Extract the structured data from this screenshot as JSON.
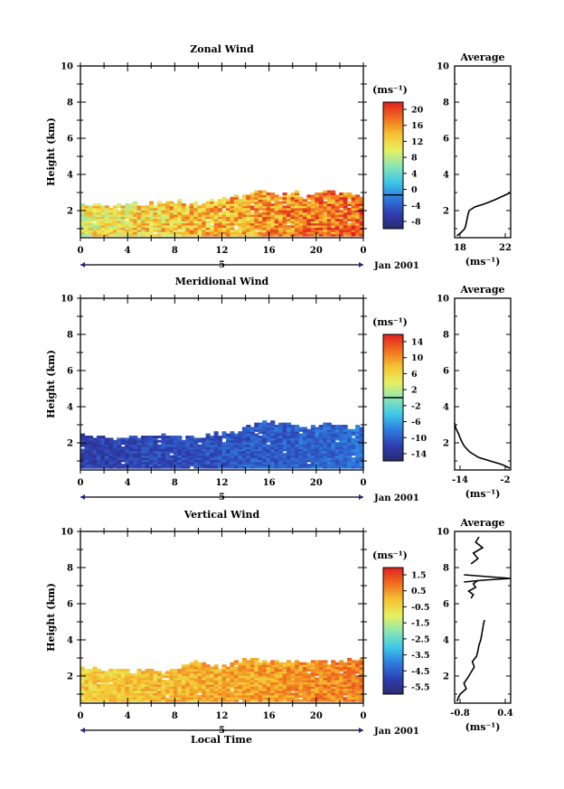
{
  "figure": {
    "bottom_xlabel": "Local Time",
    "date_label": "Jan 2001",
    "day_label": "5"
  },
  "chart_data": [
    {
      "type": "heatmap",
      "title": "Zonal Wind",
      "ylabel": "Height (km)",
      "xlim": [
        0,
        24
      ],
      "ylim": [
        0.5,
        10
      ],
      "x_ticks": [
        "0",
        "4",
        "8",
        "12",
        "16",
        "20",
        "0"
      ],
      "y_ticks": [
        "2",
        "4",
        "6",
        "8",
        "10"
      ],
      "colorbar": {
        "label": "(ms⁻¹)",
        "range": [
          -8,
          22
        ],
        "ticks": [
          "20",
          "16",
          "12",
          "8",
          "4",
          "0",
          "-4",
          "-8"
        ],
        "contour_at": 0
      },
      "field_top_km": [
        2.3,
        2.3,
        2.2,
        2.3,
        2.4,
        2.3,
        2.3,
        2.4,
        2.5,
        2.3,
        2.4,
        2.5,
        2.6,
        2.7,
        2.9,
        3.0,
        2.9,
        2.8,
        2.9,
        2.8,
        2.9,
        3.0,
        2.9,
        2.8,
        2.6
      ],
      "field_bottom_km": 0.6,
      "field_range_ms": [
        6,
        21
      ],
      "average_profile": {
        "title": "Average",
        "xlabel": "(ms⁻¹)",
        "xlim": [
          18,
          23
        ],
        "x_ticks": [
          "18",
          "22"
        ],
        "y_ticks": [
          "2",
          "4",
          "6",
          "8",
          "10"
        ],
        "height_km": [
          0.6,
          0.8,
          1.0,
          1.2,
          1.5,
          1.8,
          2.0,
          2.2,
          2.4,
          2.6,
          2.8,
          3.0
        ],
        "speed_ms": [
          18.2,
          18.6,
          18.9,
          19.0,
          19.1,
          19.2,
          19.3,
          19.8,
          20.8,
          21.6,
          22.3,
          23.0
        ]
      }
    },
    {
      "type": "heatmap",
      "title": "Meridional Wind",
      "ylabel": "Height (km)",
      "xlim": [
        0,
        24
      ],
      "ylim": [
        0.5,
        10
      ],
      "x_ticks": [
        "0",
        "4",
        "8",
        "12",
        "16",
        "20",
        "0"
      ],
      "y_ticks": [
        "2",
        "4",
        "6",
        "8",
        "10"
      ],
      "colorbar": {
        "label": "(ms⁻¹)",
        "range": [
          -16,
          16
        ],
        "ticks": [
          "14",
          "10",
          "6",
          "2",
          "-2",
          "-6",
          "-10",
          "-14"
        ],
        "contour_at": 0
      },
      "field_top_km": [
        2.3,
        2.3,
        2.3,
        2.2,
        2.3,
        2.3,
        2.2,
        2.3,
        2.3,
        2.2,
        2.3,
        2.4,
        2.5,
        2.6,
        2.8,
        3.0,
        3.1,
        3.1,
        2.9,
        2.8,
        2.9,
        3.0,
        2.9,
        2.8,
        2.8
      ],
      "field_bottom_km": 0.6,
      "field_range_ms": [
        -15,
        -8
      ],
      "average_profile": {
        "title": "Average",
        "xlabel": "(ms⁻¹)",
        "xlim": [
          -15,
          -2
        ],
        "x_ticks": [
          "-14",
          "-2"
        ],
        "y_ticks": [
          "2",
          "4",
          "6",
          "8",
          "10"
        ],
        "height_km": [
          0.6,
          0.8,
          1.0,
          1.2,
          1.5,
          1.8,
          2.0,
          2.2,
          2.5,
          2.8,
          3.1
        ],
        "speed_ms": [
          -2.2,
          -4.0,
          -6.8,
          -9.5,
          -11.5,
          -12.7,
          -13.2,
          -13.6,
          -14.1,
          -14.7,
          -15.0
        ]
      }
    },
    {
      "type": "heatmap",
      "title": "Vertical Wind",
      "ylabel": "Height (km)",
      "xlabel": "Local Time",
      "xlim": [
        0,
        24
      ],
      "ylim": [
        0.5,
        10
      ],
      "x_ticks": [
        "0",
        "4",
        "8",
        "12",
        "16",
        "20",
        "0"
      ],
      "y_ticks": [
        "2",
        "4",
        "6",
        "8",
        "10"
      ],
      "colorbar": {
        "label": "(ms⁻¹)",
        "range": [
          -7,
          2
        ],
        "ticks": [
          "1.5",
          "0.5",
          "-0.5",
          "-1.5",
          "-2.5",
          "-3.5",
          "-4.5",
          "-5.5"
        ]
      },
      "field_top_km": [
        2.4,
        2.4,
        2.3,
        2.3,
        2.2,
        2.3,
        2.3,
        2.3,
        2.4,
        2.6,
        2.7,
        2.6,
        2.5,
        2.8,
        2.9,
        2.8,
        2.7,
        2.8,
        2.8,
        2.7,
        2.8,
        2.7,
        2.8,
        2.9,
        2.8
      ],
      "field_bottom_km": 0.6,
      "field_range_ms": [
        -1.5,
        1.0
      ],
      "average_profile": {
        "title": "Average",
        "xlabel": "(ms⁻¹)",
        "xlim": [
          -0.8,
          0.4
        ],
        "x_ticks": [
          "-0.8",
          "0.4"
        ],
        "y_ticks": [
          "2",
          "4",
          "6",
          "8",
          "10"
        ],
        "segments": [
          {
            "height_km": [
              0.6,
              0.8,
              1.0,
              1.3,
              1.6,
              1.9,
              2.2,
              2.5,
              2.8,
              3.1,
              3.4,
              3.7,
              4.0,
              4.3,
              4.6,
              4.9,
              5.1
            ],
            "speed_ms": [
              -0.75,
              -0.72,
              -0.68,
              -0.55,
              -0.6,
              -0.52,
              -0.45,
              -0.38,
              -0.42,
              -0.33,
              -0.3,
              -0.28,
              -0.24,
              -0.22,
              -0.2,
              -0.18,
              -0.16
            ]
          },
          {
            "height_km": [
              6.3,
              6.5,
              6.7,
              6.9,
              7.1,
              7.3
            ],
            "speed_ms": [
              -0.45,
              -0.4,
              -0.5,
              -0.35,
              -0.4,
              -0.3
            ]
          },
          {
            "height_km": [
              7.2,
              7.3,
              7.4,
              7.5,
              7.6
            ],
            "speed_ms": [
              -0.6,
              -0.2,
              0.4,
              -0.1,
              -0.6
            ]
          },
          {
            "height_km": [
              8.2,
              8.5,
              8.8,
              9.1,
              9.4,
              9.7
            ],
            "speed_ms": [
              -0.45,
              -0.3,
              -0.4,
              -0.2,
              -0.35,
              -0.28
            ]
          }
        ]
      }
    }
  ]
}
